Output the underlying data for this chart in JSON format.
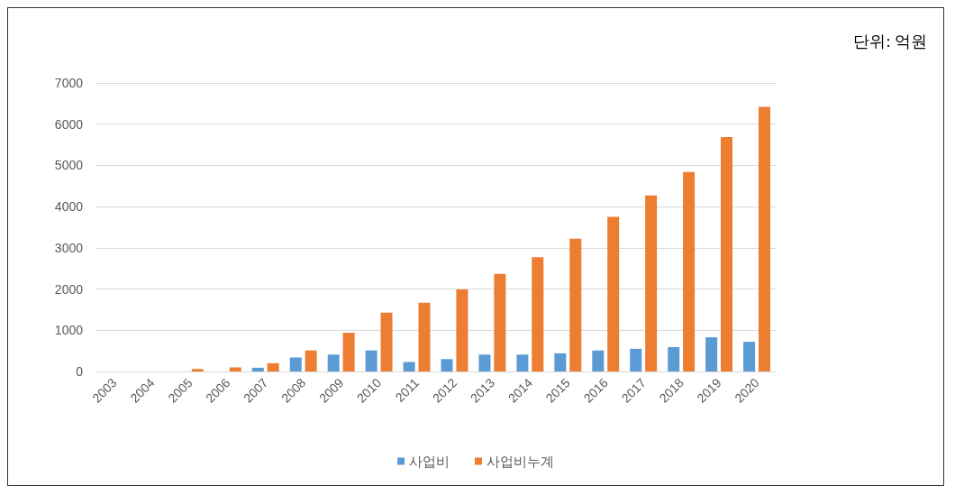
{
  "chart_data": {
    "type": "bar",
    "categories": [
      "2003",
      "2004",
      "2005",
      "2006",
      "2007",
      "2008",
      "2009",
      "2010",
      "2011",
      "2012",
      "2013",
      "2014",
      "2015",
      "2016",
      "2017",
      "2018",
      "2019",
      "2020"
    ],
    "series": [
      {
        "name": "사업비",
        "color": "#5b9bd5",
        "values": [
          0,
          0,
          0,
          0,
          90,
          340,
          410,
          510,
          230,
          300,
          410,
          410,
          440,
          510,
          550,
          590,
          830,
          720
        ]
      },
      {
        "name": "사업비누계",
        "color": "#ed7d31",
        "values": [
          0,
          0,
          60,
          100,
          200,
          510,
          940,
          1430,
          1670,
          1990,
          2370,
          2770,
          3220,
          3750,
          4270,
          4840,
          5690,
          6420
        ]
      }
    ],
    "ylim": [
      0,
      7000
    ],
    "yticks": [
      0,
      1000,
      2000,
      3000,
      4000,
      5000,
      6000,
      7000
    ],
    "grid": "y",
    "legend": "bottom",
    "annotations": [
      "단위: 억원"
    ]
  }
}
